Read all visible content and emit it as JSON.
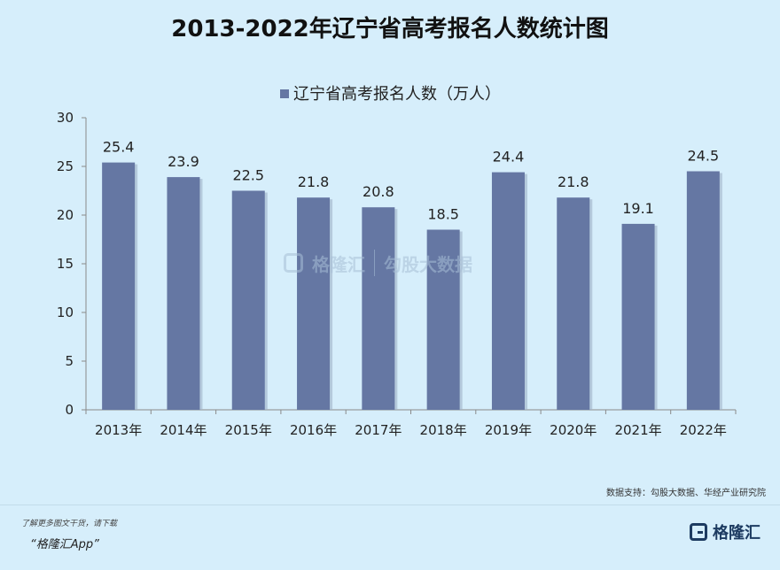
{
  "title": "2013-2022年辽宁省高考报名人数统计图",
  "chart_data": {
    "type": "bar",
    "categories": [
      "2013年",
      "2014年",
      "2015年",
      "2016年",
      "2017年",
      "2018年",
      "2019年",
      "2020年",
      "2021年",
      "2022年"
    ],
    "series": [
      {
        "name": "辽宁省高考报名人数（万人）",
        "values": [
          25.4,
          23.9,
          22.5,
          21.8,
          20.8,
          18.5,
          24.4,
          21.8,
          19.1,
          24.5
        ]
      }
    ],
    "data_labels": [
      "25.4",
      "23.9",
      "22.5",
      "21.8",
      "20.8",
      "18.5",
      "24.4",
      "21.8",
      "19.1",
      "24.5"
    ],
    "ylim": [
      0,
      30
    ],
    "yticks": [
      0,
      5,
      10,
      15,
      20,
      25,
      30
    ],
    "legend_position": "top-center",
    "grid": false,
    "bar_color": "#6577a3"
  },
  "watermark": {
    "name1": "格隆汇",
    "name2": "勾股大数据"
  },
  "footer": {
    "source": "数据支持：勾股大数据、华经产业研究院",
    "promo": "了解更多图文干货，请下载",
    "app": "“格隆汇App”",
    "brand": "格隆汇"
  }
}
